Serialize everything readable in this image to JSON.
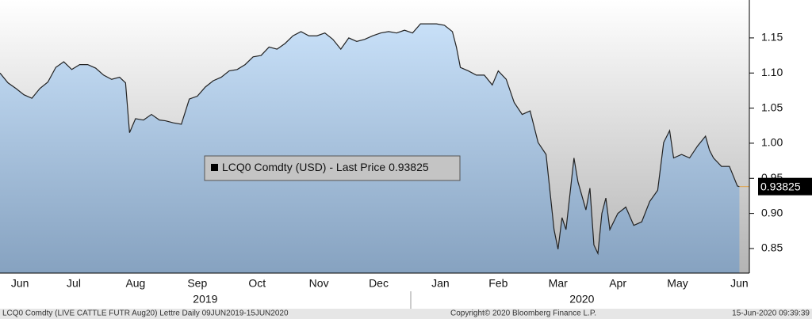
{
  "chart_data": {
    "type": "area",
    "x": [
      0,
      4,
      8,
      12,
      16,
      20,
      24,
      28,
      32,
      36,
      40,
      44,
      48,
      52,
      56,
      60,
      63,
      65,
      68,
      72,
      76,
      80,
      83,
      87,
      91,
      95,
      99,
      103,
      107,
      111,
      115,
      119,
      123,
      127,
      131,
      135,
      139,
      143,
      147,
      151,
      155,
      159,
      163,
      167,
      171,
      175,
      179,
      183,
      187,
      191,
      195,
      199,
      203,
      207,
      211,
      215,
      219,
      223,
      227,
      229,
      231,
      235,
      239,
      243,
      247,
      250,
      254,
      258,
      262,
      266,
      270,
      274,
      278,
      280,
      282,
      284,
      286,
      288,
      290,
      294,
      296,
      298,
      300,
      302,
      304,
      306,
      310,
      314,
      318,
      322,
      326,
      330,
      333,
      336,
      338,
      342,
      346,
      350,
      354,
      356,
      358,
      362,
      366,
      370,
      371
    ],
    "series": [
      {
        "name": "LCQ0 Comdty (USD) - Last Price",
        "color": "#222222",
        "values": [
          1.1,
          1.086,
          1.078,
          1.069,
          1.064,
          1.078,
          1.087,
          1.108,
          1.116,
          1.105,
          1.112,
          1.112,
          1.107,
          1.097,
          1.091,
          1.094,
          1.086,
          1.015,
          1.035,
          1.033,
          1.041,
          1.033,
          1.032,
          1.029,
          1.027,
          1.063,
          1.067,
          1.08,
          1.089,
          1.094,
          1.103,
          1.105,
          1.112,
          1.123,
          1.125,
          1.137,
          1.134,
          1.142,
          1.153,
          1.159,
          1.153,
          1.153,
          1.157,
          1.148,
          1.134,
          1.15,
          1.145,
          1.148,
          1.153,
          1.157,
          1.159,
          1.157,
          1.161,
          1.157,
          1.17,
          1.17,
          1.17,
          1.168,
          1.159,
          1.137,
          1.108,
          1.103,
          1.097,
          1.097,
          1.083,
          1.103,
          1.091,
          1.058,
          1.041,
          1.046,
          1.001,
          0.984,
          0.877,
          0.849,
          0.894,
          0.877,
          0.928,
          0.979,
          0.945,
          0.905,
          0.936,
          0.855,
          0.843,
          0.9,
          0.922,
          0.877,
          0.9,
          0.909,
          0.883,
          0.888,
          0.917,
          0.933,
          1.001,
          1.018,
          0.979,
          0.984,
          0.979,
          0.996,
          1.01,
          0.99,
          0.979,
          0.967,
          0.967,
          0.939,
          0.93825
        ]
      }
    ],
    "last_value": 0.93825,
    "xlim": [
      0,
      376
    ],
    "xticks": [
      {
        "value": 10,
        "label": "Jun"
      },
      {
        "value": 37,
        "label": "Jul"
      },
      {
        "value": 68,
        "label": "Aug"
      },
      {
        "value": 99,
        "label": "Sep"
      },
      {
        "value": 129,
        "label": "Oct"
      },
      {
        "value": 160,
        "label": "Nov"
      },
      {
        "value": 190,
        "label": "Dec"
      },
      {
        "value": 221,
        "label": "Jan"
      },
      {
        "value": 250,
        "label": "Feb"
      },
      {
        "value": 280,
        "label": "Mar"
      },
      {
        "value": 310,
        "label": "Apr"
      },
      {
        "value": 340,
        "label": "May"
      },
      {
        "value": 371,
        "label": "Jun"
      }
    ],
    "year_ticks": [
      {
        "value": 103,
        "label": "2019"
      },
      {
        "value": 292,
        "label": "2020"
      }
    ],
    "ylim": [
      0.815,
      1.204
    ],
    "yticks": [
      0.85,
      {
        "value": 0.9,
        "label": "0.90"
      },
      0.95,
      {
        "value": 1,
        "label": "1.00"
      },
      1.05,
      {
        "value": 1.1,
        "label": "1.10"
      },
      1.15
    ],
    "footer": {
      "left": "LCQ0 Comdty (LIVE CATTLE FUTR  Aug20) Lettre  Daily 09JUN2019-15JUN2020",
      "center": "Copyright© 2020 Bloomberg Finance L.P.",
      "right": "15-Jun-2020 09:39:39"
    }
  }
}
